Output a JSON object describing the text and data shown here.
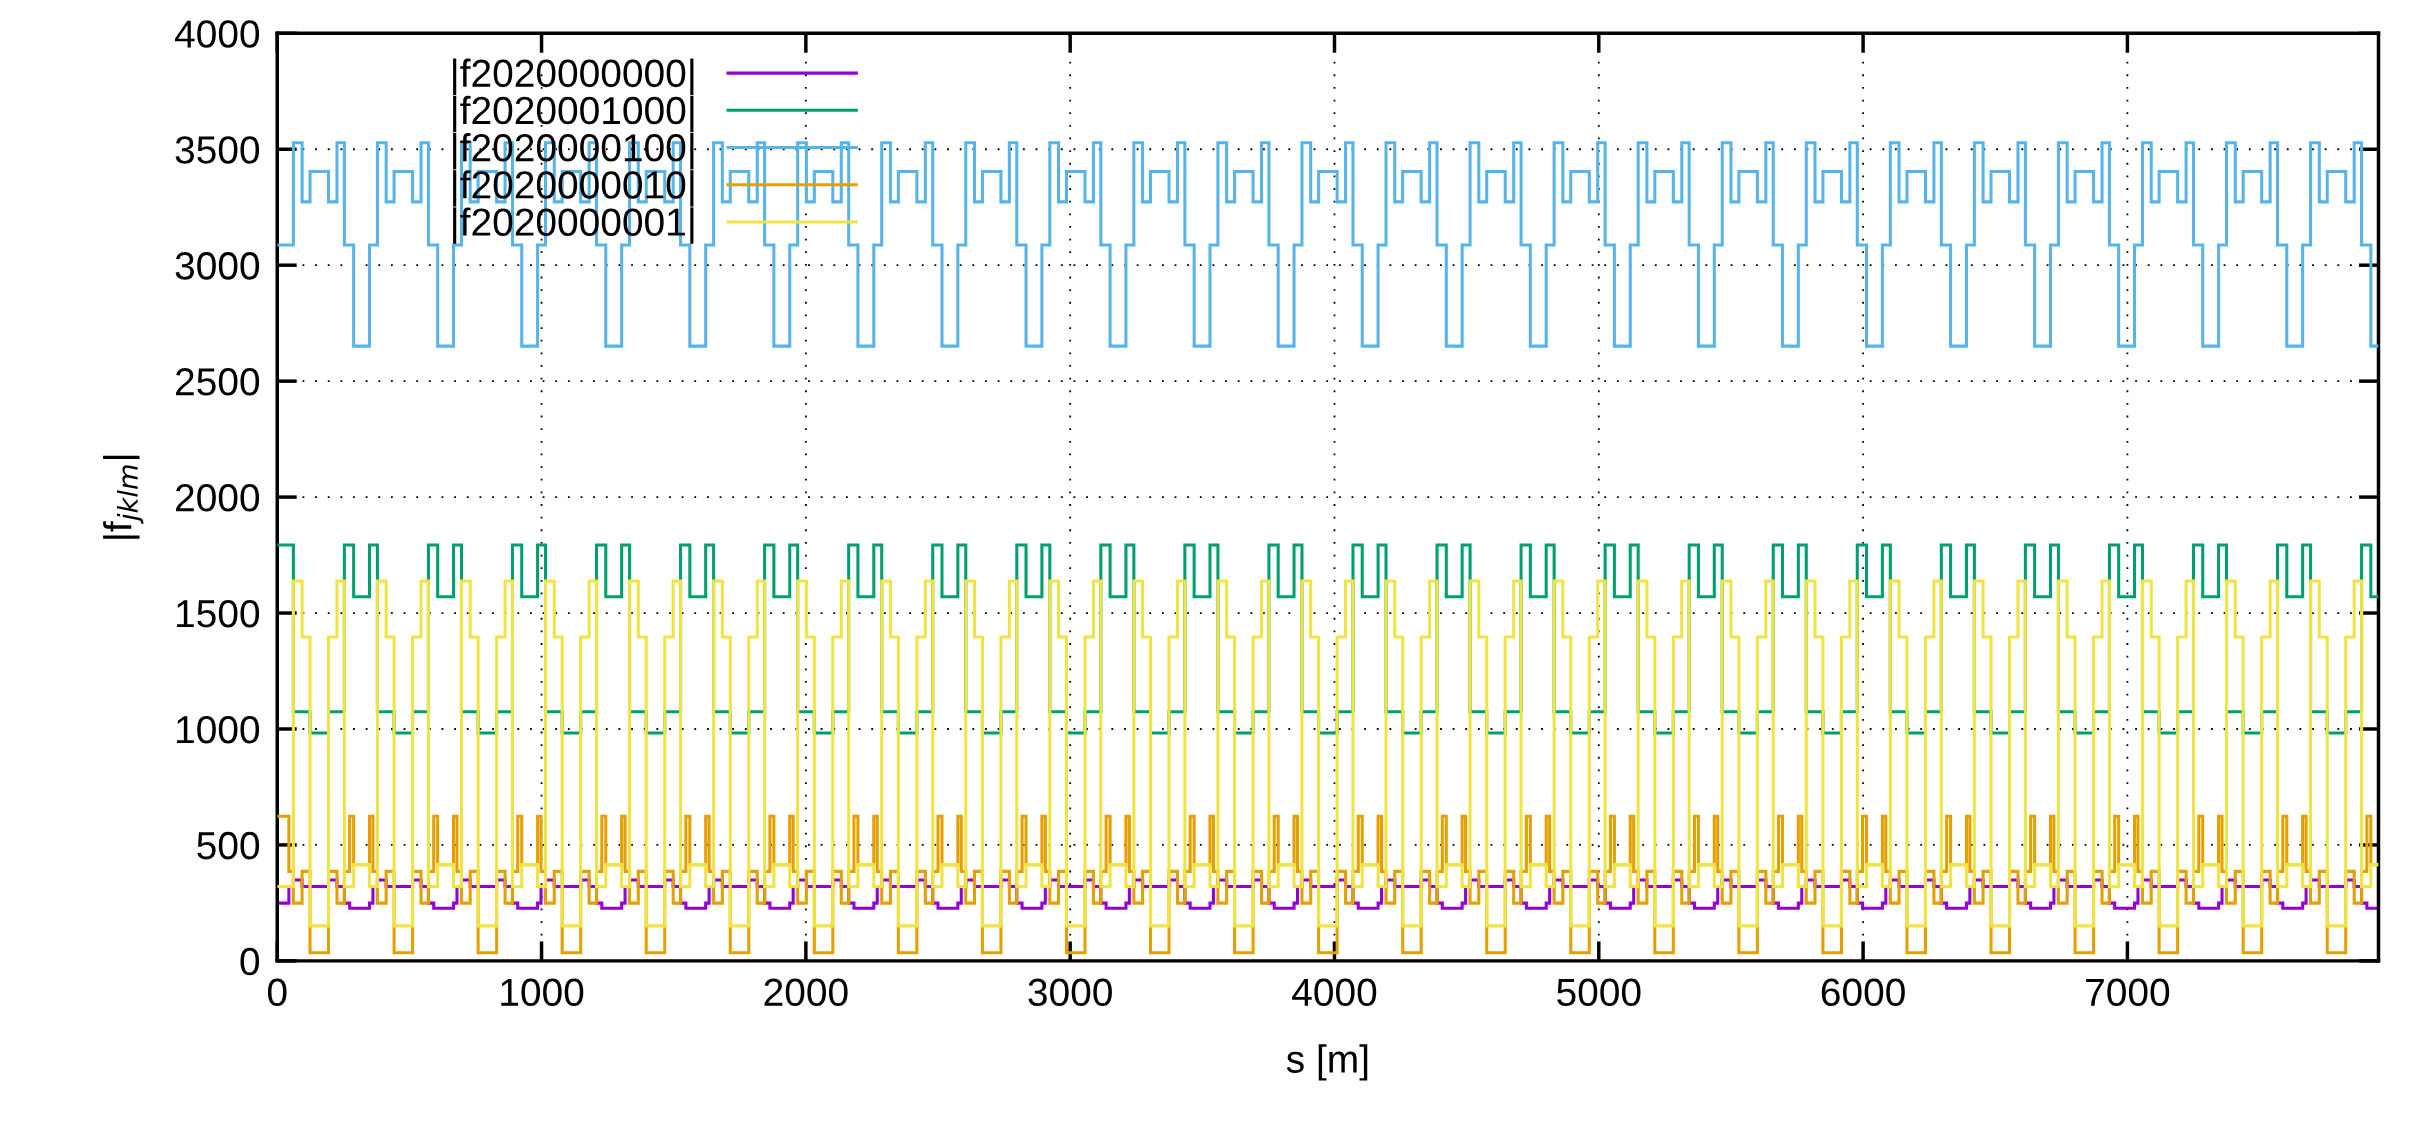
{
  "chart_data": {
    "type": "step",
    "xlabel": "s [m]",
    "ylabel": "|f$_{jklm}$|",
    "xlim": [
      0,
      7950
    ],
    "ylim": [
      0,
      4000
    ],
    "xticks": [
      0,
      1000,
      2000,
      3000,
      4000,
      5000,
      6000,
      7000
    ],
    "yticks": [
      0,
      500,
      1000,
      1500,
      2000,
      2500,
      3000,
      3500,
      4000
    ],
    "grid": true,
    "legend": "top left",
    "line_style": "solid",
    "marker": "none",
    "x": [
      0,
      44,
      61,
      94,
      124,
      194,
      226,
      254,
      274,
      289,
      349,
      362,
      379,
      412,
      442,
      512,
      544,
      572,
      592,
      607,
      667,
      680,
      697,
      730,
      760,
      830,
      862,
      890,
      910,
      925,
      985,
      998,
      1015,
      1048,
      1078,
      1148,
      1180,
      1208,
      1228,
      1243,
      1303,
      1316,
      1333,
      1366,
      1396,
      1466,
      1498,
      1526,
      1546,
      1561,
      1621,
      1634,
      1651,
      1684,
      1714,
      1784,
      1816,
      1844,
      1864,
      1879,
      1939,
      1952,
      1969,
      2002,
      2032,
      2102,
      2134,
      2162,
      2182,
      2197,
      2257,
      2270,
      2287,
      2320,
      2350,
      2420,
      2452,
      2480,
      2500,
      2515,
      2575,
      2588,
      2605,
      2638,
      2668,
      2738,
      2770,
      2798,
      2818,
      2833,
      2893,
      2906,
      2923,
      2956,
      2986,
      3056,
      3088,
      3116,
      3136,
      3151,
      3211,
      3224,
      3241,
      3274,
      3304,
      3374,
      3406,
      3434,
      3454,
      3469,
      3529,
      3542,
      3559,
      3592,
      3622,
      3692,
      3724,
      3752,
      3772,
      3787,
      3847,
      3860,
      3877,
      3910,
      3940,
      4010,
      4042,
      4070,
      4090,
      4105,
      4165,
      4178,
      4195,
      4228,
      4258,
      4328,
      4360,
      4388,
      4408,
      4423,
      4483,
      4496,
      4513,
      4546,
      4576,
      4646,
      4678,
      4706,
      4726,
      4741,
      4801,
      4814,
      4831,
      4864,
      4894,
      4964,
      4996,
      5024,
      5044,
      5059,
      5119,
      5132,
      5149,
      5182,
      5212,
      5282,
      5314,
      5342,
      5362,
      5377,
      5437,
      5450,
      5467,
      5500,
      5530,
      5600,
      5632,
      5660,
      5680,
      5695,
      5755,
      5768,
      5785,
      5818,
      5848,
      5918,
      5950,
      5978,
      5998,
      6013,
      6073,
      6086,
      6103,
      6136,
      6166,
      6236,
      6268,
      6296,
      6316,
      6331,
      6391,
      6404,
      6421,
      6454,
      6484,
      6554,
      6586,
      6614,
      6634,
      6649,
      6709,
      6722,
      6739,
      6772,
      6802,
      6872,
      6904,
      6932,
      6952,
      6967,
      7027,
      7040,
      7057,
      7090,
      7120,
      7190,
      7222,
      7250,
      7270,
      7285,
      7345,
      7358,
      7375,
      7408,
      7438,
      7508,
      7540,
      7568,
      7588,
      7603,
      7663,
      7676,
      7693,
      7726,
      7756,
      7826,
      7858,
      7886,
      7906,
      7921
    ],
    "series": [
      {
        "name": "|f2020000000|",
        "color": "#9400d3",
        "values": [
          249,
          321,
          349,
          321,
          321,
          349,
          321,
          249,
          227,
          227,
          249,
          321,
          349,
          321,
          321,
          349,
          321,
          249,
          227,
          227,
          249,
          321,
          349,
          321,
          321,
          349,
          321,
          249,
          227,
          227,
          249,
          321,
          349,
          321,
          321,
          349,
          321,
          249,
          227,
          227,
          249,
          321,
          349,
          321,
          321,
          349,
          321,
          249,
          227,
          227,
          249,
          321,
          349,
          321,
          321,
          349,
          321,
          249,
          227,
          227,
          249,
          321,
          349,
          321,
          321,
          349,
          321,
          249,
          227,
          227,
          249,
          321,
          349,
          321,
          321,
          349,
          321,
          249,
          227,
          227,
          249,
          321,
          349,
          321,
          321,
          349,
          321,
          249,
          227,
          227,
          249,
          321,
          349,
          321,
          321,
          349,
          321,
          249,
          227,
          227,
          249,
          321,
          349,
          321,
          321,
          349,
          321,
          249,
          227,
          227,
          249,
          321,
          349,
          321,
          321,
          349,
          321,
          249,
          227,
          227,
          249,
          321,
          349,
          321,
          321,
          349,
          321,
          249,
          227,
          227,
          249,
          321,
          349,
          321,
          321,
          349,
          321,
          249,
          227,
          227,
          249,
          321,
          349,
          321,
          321,
          349,
          321,
          249,
          227,
          227,
          249,
          321,
          349,
          321,
          321,
          349,
          321,
          249,
          227,
          227,
          249,
          321,
          349,
          321,
          321,
          349,
          321,
          249,
          227,
          227,
          249,
          321,
          349,
          321,
          321,
          349,
          321,
          249,
          227,
          227,
          249,
          321,
          349,
          321,
          321,
          349,
          321,
          249,
          227,
          227,
          249,
          321,
          349,
          321,
          321,
          349,
          321,
          249,
          227,
          227,
          249,
          321,
          349,
          321,
          321,
          349,
          321,
          249,
          227,
          227,
          249,
          321,
          349,
          321,
          321,
          349,
          321,
          249,
          227,
          227,
          249,
          321,
          349,
          321,
          321,
          349,
          321,
          249,
          227,
          227,
          249,
          321,
          349,
          321,
          321,
          349,
          321,
          249,
          227,
          227,
          249,
          321,
          349,
          321,
          321,
          349,
          321,
          249,
          227,
          227
        ]
      },
      {
        "name": "|f2020001000|",
        "color": "#009e73",
        "values": [
          1793,
          1793,
          1074,
          1074,
          983,
          1074,
          1074,
          1793,
          1793,
          1570,
          1793,
          1793,
          1074,
          1074,
          983,
          1074,
          1074,
          1793,
          1793,
          1570,
          1793,
          1793,
          1074,
          1074,
          983,
          1074,
          1074,
          1793,
          1793,
          1570,
          1793,
          1793,
          1074,
          1074,
          983,
          1074,
          1074,
          1793,
          1793,
          1570,
          1793,
          1793,
          1074,
          1074,
          983,
          1074,
          1074,
          1793,
          1793,
          1570,
          1793,
          1793,
          1074,
          1074,
          983,
          1074,
          1074,
          1793,
          1793,
          1570,
          1793,
          1793,
          1074,
          1074,
          983,
          1074,
          1074,
          1793,
          1793,
          1570,
          1793,
          1793,
          1074,
          1074,
          983,
          1074,
          1074,
          1793,
          1793,
          1570,
          1793,
          1793,
          1074,
          1074,
          983,
          1074,
          1074,
          1793,
          1793,
          1570,
          1793,
          1793,
          1074,
          1074,
          983,
          1074,
          1074,
          1793,
          1793,
          1570,
          1793,
          1793,
          1074,
          1074,
          983,
          1074,
          1074,
          1793,
          1793,
          1570,
          1793,
          1793,
          1074,
          1074,
          983,
          1074,
          1074,
          1793,
          1793,
          1570,
          1793,
          1793,
          1074,
          1074,
          983,
          1074,
          1074,
          1793,
          1793,
          1570,
          1793,
          1793,
          1074,
          1074,
          983,
          1074,
          1074,
          1793,
          1793,
          1570,
          1793,
          1793,
          1074,
          1074,
          983,
          1074,
          1074,
          1793,
          1793,
          1570,
          1793,
          1793,
          1074,
          1074,
          983,
          1074,
          1074,
          1793,
          1793,
          1570,
          1793,
          1793,
          1074,
          1074,
          983,
          1074,
          1074,
          1793,
          1793,
          1570,
          1793,
          1793,
          1074,
          1074,
          983,
          1074,
          1074,
          1793,
          1793,
          1570,
          1793,
          1793,
          1074,
          1074,
          983,
          1074,
          1074,
          1793,
          1793,
          1570,
          1793,
          1793,
          1074,
          1074,
          983,
          1074,
          1074,
          1793,
          1793,
          1570,
          1793,
          1793,
          1074,
          1074,
          983,
          1074,
          1074,
          1793,
          1793,
          1570,
          1793,
          1793,
          1074,
          1074,
          983,
          1074,
          1074,
          1793,
          1793,
          1570,
          1793,
          1793,
          1074,
          1074,
          983,
          1074,
          1074,
          1793,
          1793,
          1570,
          1793,
          1793,
          1074,
          1074,
          983,
          1074,
          1074,
          1793,
          1793,
          1570,
          1793,
          1793,
          1074,
          1074,
          983,
          1074,
          1074,
          1793,
          1793,
          1570
        ]
      },
      {
        "name": "|f2020000100|",
        "color": "#56b4e9",
        "values": [
          3087,
          3087,
          3528,
          3273,
          3404,
          3273,
          3528,
          3087,
          3087,
          2651,
          3087,
          3087,
          3528,
          3273,
          3404,
          3273,
          3528,
          3087,
          3087,
          2651,
          3087,
          3087,
          3528,
          3273,
          3404,
          3273,
          3528,
          3087,
          3087,
          2651,
          3087,
          3087,
          3528,
          3273,
          3404,
          3273,
          3528,
          3087,
          3087,
          2651,
          3087,
          3087,
          3528,
          3273,
          3404,
          3273,
          3528,
          3087,
          3087,
          2651,
          3087,
          3087,
          3528,
          3273,
          3404,
          3273,
          3528,
          3087,
          3087,
          2651,
          3087,
          3087,
          3528,
          3273,
          3404,
          3273,
          3528,
          3087,
          3087,
          2651,
          3087,
          3087,
          3528,
          3273,
          3404,
          3273,
          3528,
          3087,
          3087,
          2651,
          3087,
          3087,
          3528,
          3273,
          3404,
          3273,
          3528,
          3087,
          3087,
          2651,
          3087,
          3087,
          3528,
          3273,
          3404,
          3273,
          3528,
          3087,
          3087,
          2651,
          3087,
          3087,
          3528,
          3273,
          3404,
          3273,
          3528,
          3087,
          3087,
          2651,
          3087,
          3087,
          3528,
          3273,
          3404,
          3273,
          3528,
          3087,
          3087,
          2651,
          3087,
          3087,
          3528,
          3273,
          3404,
          3273,
          3528,
          3087,
          3087,
          2651,
          3087,
          3087,
          3528,
          3273,
          3404,
          3273,
          3528,
          3087,
          3087,
          2651,
          3087,
          3087,
          3528,
          3273,
          3404,
          3273,
          3528,
          3087,
          3087,
          2651,
          3087,
          3087,
          3528,
          3273,
          3404,
          3273,
          3528,
          3087,
          3087,
          2651,
          3087,
          3087,
          3528,
          3273,
          3404,
          3273,
          3528,
          3087,
          3087,
          2651,
          3087,
          3087,
          3528,
          3273,
          3404,
          3273,
          3528,
          3087,
          3087,
          2651,
          3087,
          3087,
          3528,
          3273,
          3404,
          3273,
          3528,
          3087,
          3087,
          2651,
          3087,
          3087,
          3528,
          3273,
          3404,
          3273,
          3528,
          3087,
          3087,
          2651,
          3087,
          3087,
          3528,
          3273,
          3404,
          3273,
          3528,
          3087,
          3087,
          2651,
          3087,
          3087,
          3528,
          3273,
          3404,
          3273,
          3528,
          3087,
          3087,
          2651,
          3087,
          3087,
          3528,
          3273,
          3404,
          3273,
          3528,
          3087,
          3087,
          2651,
          3087,
          3087,
          3528,
          3273,
          3404,
          3273,
          3528,
          3087,
          3087,
          2651,
          3087,
          3087,
          3528,
          3273,
          3404,
          3273,
          3528,
          3087,
          3087,
          2651
        ]
      },
      {
        "name": "|f2020000010|",
        "color": "#e69f00",
        "values": [
          624,
          386,
          249,
          386,
          35,
          386,
          249,
          386,
          624,
          415,
          624,
          386,
          249,
          386,
          35,
          386,
          249,
          386,
          624,
          415,
          624,
          386,
          249,
          386,
          35,
          386,
          249,
          386,
          624,
          415,
          624,
          386,
          249,
          386,
          35,
          386,
          249,
          386,
          624,
          415,
          624,
          386,
          249,
          386,
          35,
          386,
          249,
          386,
          624,
          415,
          624,
          386,
          249,
          386,
          35,
          386,
          249,
          386,
          624,
          415,
          624,
          386,
          249,
          386,
          35,
          386,
          249,
          386,
          624,
          415,
          624,
          386,
          249,
          386,
          35,
          386,
          249,
          386,
          624,
          415,
          624,
          386,
          249,
          386,
          35,
          386,
          249,
          386,
          624,
          415,
          624,
          386,
          249,
          386,
          35,
          386,
          249,
          386,
          624,
          415,
          624,
          386,
          249,
          386,
          35,
          386,
          249,
          386,
          624,
          415,
          624,
          386,
          249,
          386,
          35,
          386,
          249,
          386,
          624,
          415,
          624,
          386,
          249,
          386,
          35,
          386,
          249,
          386,
          624,
          415,
          624,
          386,
          249,
          386,
          35,
          386,
          249,
          386,
          624,
          415,
          624,
          386,
          249,
          386,
          35,
          386,
          249,
          386,
          624,
          415,
          624,
          386,
          249,
          386,
          35,
          386,
          249,
          386,
          624,
          415,
          624,
          386,
          249,
          386,
          35,
          386,
          249,
          386,
          624,
          415,
          624,
          386,
          249,
          386,
          35,
          386,
          249,
          386,
          624,
          415,
          624,
          386,
          249,
          386,
          35,
          386,
          249,
          386,
          624,
          415,
          624,
          386,
          249,
          386,
          35,
          386,
          249,
          386,
          624,
          415,
          624,
          386,
          249,
          386,
          35,
          386,
          249,
          386,
          624,
          415,
          624,
          386,
          249,
          386,
          35,
          386,
          249,
          386,
          624,
          415,
          624,
          386,
          249,
          386,
          35,
          386,
          249,
          386,
          624,
          415,
          624,
          386,
          249,
          386,
          35,
          386,
          249,
          386,
          624,
          415,
          624,
          386,
          249,
          386,
          35,
          386,
          249,
          386,
          624,
          415
        ]
      },
      {
        "name": "|f2020000001|",
        "color": "#f0e442",
        "values": [
          321,
          321,
          1638,
          1397,
          151,
          1397,
          1638,
          321,
          321,
          415,
          321,
          321,
          1638,
          1397,
          151,
          1397,
          1638,
          321,
          321,
          415,
          321,
          321,
          1638,
          1397,
          151,
          1397,
          1638,
          321,
          321,
          415,
          321,
          321,
          1638,
          1397,
          151,
          1397,
          1638,
          321,
          321,
          415,
          321,
          321,
          1638,
          1397,
          151,
          1397,
          1638,
          321,
          321,
          415,
          321,
          321,
          1638,
          1397,
          151,
          1397,
          1638,
          321,
          321,
          415,
          321,
          321,
          1638,
          1397,
          151,
          1397,
          1638,
          321,
          321,
          415,
          321,
          321,
          1638,
          1397,
          151,
          1397,
          1638,
          321,
          321,
          415,
          321,
          321,
          1638,
          1397,
          151,
          1397,
          1638,
          321,
          321,
          415,
          321,
          321,
          1638,
          1397,
          151,
          1397,
          1638,
          321,
          321,
          415,
          321,
          321,
          1638,
          1397,
          151,
          1397,
          1638,
          321,
          321,
          415,
          321,
          321,
          1638,
          1397,
          151,
          1397,
          1638,
          321,
          321,
          415,
          321,
          321,
          1638,
          1397,
          151,
          1397,
          1638,
          321,
          321,
          415,
          321,
          321,
          1638,
          1397,
          151,
          1397,
          1638,
          321,
          321,
          415,
          321,
          321,
          1638,
          1397,
          151,
          1397,
          1638,
          321,
          321,
          415,
          321,
          321,
          1638,
          1397,
          151,
          1397,
          1638,
          321,
          321,
          415,
          321,
          321,
          1638,
          1397,
          151,
          1397,
          1638,
          321,
          321,
          415,
          321,
          321,
          1638,
          1397,
          151,
          1397,
          1638,
          321,
          321,
          415,
          321,
          321,
          1638,
          1397,
          151,
          1397,
          1638,
          321,
          321,
          415,
          321,
          321,
          1638,
          1397,
          151,
          1397,
          1638,
          321,
          321,
          415,
          321,
          321,
          1638,
          1397,
          151,
          1397,
          1638,
          321,
          321,
          415,
          321,
          321,
          1638,
          1397,
          151,
          1397,
          1638,
          321,
          321,
          415,
          321,
          321,
          1638,
          1397,
          151,
          1397,
          1638,
          321,
          321,
          415,
          321,
          321,
          1638,
          1397,
          151,
          1397,
          1638,
          321,
          321,
          415,
          321,
          321,
          1638,
          1397,
          151,
          1397,
          1638,
          321,
          321,
          415
        ]
      }
    ]
  }
}
